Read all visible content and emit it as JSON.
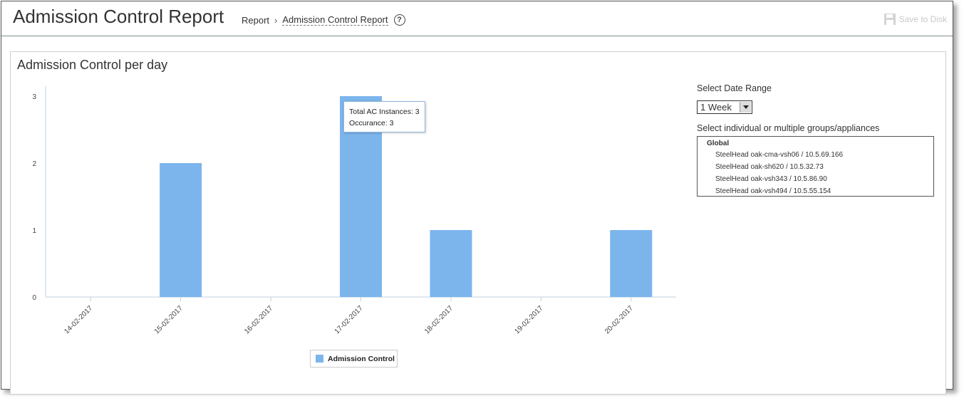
{
  "header": {
    "title": "Admission Control Report",
    "breadcrumb": {
      "root": "Report",
      "separator": "›",
      "current": "Admission Control Report"
    },
    "help_symbol": "?",
    "save_label": "Save to Disk"
  },
  "panel": {
    "title": "Admission Control per day"
  },
  "chart_data": {
    "type": "bar",
    "title": "",
    "xlabel": "",
    "ylabel": "",
    "categories": [
      "14-02-2017",
      "15-02-2017",
      "16-02-2017",
      "17-02-2017",
      "18-02-2017",
      "19-02-2017",
      "20-02-2017"
    ],
    "series": [
      {
        "name": "Admission Control",
        "values": [
          0,
          2,
          0,
          3,
          1,
          0,
          1
        ],
        "color": "#7cb5ec"
      }
    ],
    "ylim": [
      0,
      3
    ],
    "yticks": [
      0,
      1,
      2,
      3
    ],
    "grid": false,
    "legend": "bottom-center",
    "tooltip": {
      "category": "17-02-2017",
      "line1": "Total AC Instances: 3",
      "line2": "Occurance: 3"
    }
  },
  "sidebar": {
    "date_range_label": "Select Date Range",
    "date_range_value": "1 Week",
    "groups_label": "Select individual or multiple groups/appliances",
    "group_name": "Global",
    "appliances": [
      "SteelHead oak-cma-vsh06 / 10.5.69.166",
      "SteelHead oak-sh620 / 10.5.32.73",
      "SteelHead oak-vsh343 / 10.5.86.90",
      "SteelHead oak-vsh494 / 10.5.55.154"
    ]
  },
  "colors": {
    "bar": "#7cb5ec",
    "axis": "#c0d0e0",
    "header_border": "#7d8f86"
  },
  "icons": {
    "help": "question-circle-icon",
    "save": "floppy-disk-icon",
    "select_arrow": "chevron-down-icon"
  }
}
